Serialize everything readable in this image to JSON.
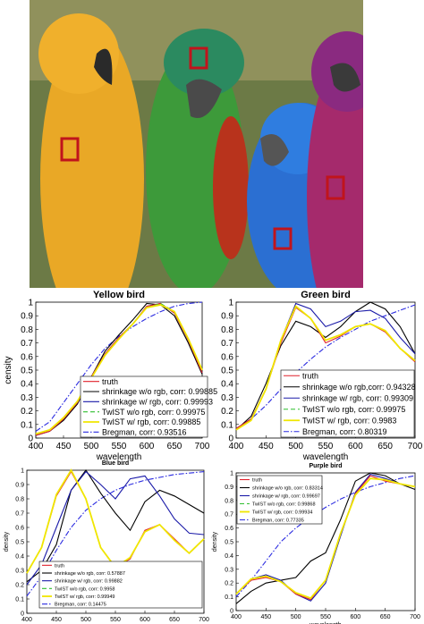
{
  "photo": {
    "description_icons": [
      "yellow-parrot",
      "green-macaw",
      "blue-parrot",
      "purple-parrot",
      "red-selection-square"
    ],
    "colors": {
      "marker": "#c0141c",
      "yellow_bird": "#e7a21c",
      "green_bird": "#3f9a3a",
      "blue_bird": "#2f6fd0",
      "purple_bird": "#a02870"
    }
  },
  "chart_data": [
    {
      "type": "line",
      "title": "Yellow bird",
      "xlabel": "wavelength",
      "ylabel": "censity",
      "xlim": [
        400,
        700
      ],
      "ylim": [
        0,
        1
      ],
      "xticks": [
        "400",
        "450",
        "500",
        "550",
        "600",
        "650",
        "700"
      ],
      "yticks": [
        "0",
        "0.1",
        "0.2",
        "0.3",
        "0.4",
        "0.5",
        "0.6",
        "0.7",
        "0.8",
        "0.9",
        "1"
      ],
      "legend_position": "lower-right",
      "x": [
        400,
        425,
        450,
        475,
        500,
        525,
        550,
        575,
        600,
        625,
        650,
        675,
        700
      ],
      "series": [
        {
          "name": "truth",
          "color": "#e0202a",
          "dash": "solid",
          "values": [
            0.02,
            0.05,
            0.14,
            0.26,
            0.45,
            0.62,
            0.74,
            0.84,
            0.97,
            0.99,
            0.92,
            0.72,
            0.48
          ]
        },
        {
          "name": "shrinkage w/o rgb, corr: 0.99885",
          "color": "#000000",
          "dash": "solid",
          "values": [
            0.02,
            0.05,
            0.13,
            0.25,
            0.45,
            0.64,
            0.76,
            0.87,
            0.99,
            0.98,
            0.9,
            0.7,
            0.47
          ]
        },
        {
          "name": "shrinkage w/ rgb, corr: 0.99993",
          "color": "#1a1aa8",
          "dash": "solid",
          "values": [
            0.02,
            0.05,
            0.14,
            0.26,
            0.45,
            0.62,
            0.74,
            0.84,
            0.97,
            0.99,
            0.92,
            0.72,
            0.48
          ]
        },
        {
          "name": "TwIST w/o rgb, corr: 0.99975",
          "color": "#2fbf2f",
          "dash": "dashed",
          "values": [
            0.03,
            0.06,
            0.15,
            0.27,
            0.44,
            0.61,
            0.73,
            0.84,
            0.96,
            0.99,
            0.93,
            0.73,
            0.5
          ]
        },
        {
          "name": "TwIST w/ rgb, corr: 0.99885",
          "color": "#f0e600",
          "dash": "solid",
          "values": [
            0.03,
            0.06,
            0.15,
            0.27,
            0.44,
            0.61,
            0.73,
            0.84,
            0.96,
            0.98,
            0.93,
            0.73,
            0.5
          ]
        },
        {
          "name": "Bregman, corr: 0.93516",
          "color": "#2a2ae0",
          "dash": "dashdot",
          "values": [
            0.05,
            0.12,
            0.26,
            0.4,
            0.54,
            0.66,
            0.75,
            0.82,
            0.88,
            0.93,
            0.97,
            0.99,
            1.0
          ]
        }
      ]
    },
    {
      "type": "line",
      "title": "Green bird",
      "xlabel": "wavelength",
      "ylabel": "",
      "xlim": [
        400,
        700
      ],
      "ylim": [
        0,
        1
      ],
      "xticks": [
        "400",
        "450",
        "500",
        "550",
        "600",
        "650",
        "700"
      ],
      "yticks": [
        "0",
        "0.1",
        "0.2",
        "0.3",
        "0.4",
        "0.5",
        "0.6",
        "0.7",
        "0.8",
        "0.9",
        "1"
      ],
      "legend_position": "lower-right",
      "x": [
        400,
        425,
        450,
        475,
        500,
        525,
        550,
        575,
        600,
        625,
        650,
        675,
        700
      ],
      "series": [
        {
          "name": "truth",
          "color": "#e0202a",
          "dash": "solid",
          "values": [
            0.07,
            0.14,
            0.36,
            0.7,
            0.96,
            0.88,
            0.7,
            0.75,
            0.82,
            0.84,
            0.78,
            0.66,
            0.56
          ]
        },
        {
          "name": "shrinkage w/o rgb,corr: 0.94328",
          "color": "#000000",
          "dash": "solid",
          "values": [
            0.06,
            0.16,
            0.4,
            0.68,
            0.86,
            0.82,
            0.74,
            0.82,
            0.93,
            1.0,
            0.95,
            0.82,
            0.62
          ]
        },
        {
          "name": "shrinkage w/ rgb, corr: 0.99309",
          "color": "#1a1aa8",
          "dash": "solid",
          "values": [
            0.07,
            0.14,
            0.36,
            0.72,
            0.99,
            0.95,
            0.82,
            0.86,
            0.93,
            0.94,
            0.88,
            0.74,
            0.62
          ]
        },
        {
          "name": "TwIST w/o rgb, corr: 0.99975",
          "color": "#2fbf2f",
          "dash": "dashed",
          "values": [
            0.06,
            0.13,
            0.36,
            0.72,
            0.97,
            0.88,
            0.72,
            0.76,
            0.82,
            0.84,
            0.79,
            0.66,
            0.57
          ]
        },
        {
          "name": "TwIST w/ rgb, corr: 0.9983",
          "color": "#f0e600",
          "dash": "solid",
          "values": [
            0.06,
            0.13,
            0.36,
            0.72,
            0.97,
            0.88,
            0.72,
            0.76,
            0.82,
            0.84,
            0.79,
            0.66,
            0.57
          ]
        },
        {
          "name": "Bregman, corr: 0.80319",
          "color": "#2a2ae0",
          "dash": "dashdot",
          "values": [
            0.07,
            0.14,
            0.24,
            0.36,
            0.48,
            0.58,
            0.67,
            0.74,
            0.8,
            0.86,
            0.9,
            0.94,
            0.98
          ]
        }
      ]
    },
    {
      "type": "line",
      "title": "Blue bird",
      "xlabel": "wavelength",
      "ylabel": "density",
      "xlim": [
        400,
        700
      ],
      "ylim": [
        0,
        1
      ],
      "xticks": [
        "400",
        "450",
        "500",
        "550",
        "600",
        "650",
        "700"
      ],
      "yticks": [
        "0",
        "0.1",
        "0.2",
        "0.3",
        "0.4",
        "0.5",
        "0.6",
        "0.7",
        "0.8",
        "0.9",
        "1"
      ],
      "legend_position": "lower-left",
      "x": [
        400,
        425,
        450,
        475,
        500,
        525,
        550,
        575,
        600,
        625,
        650,
        675,
        700
      ],
      "series": [
        {
          "name": "truth",
          "color": "#e0202a",
          "dash": "solid",
          "values": [
            0.28,
            0.46,
            0.82,
            0.99,
            0.8,
            0.46,
            0.32,
            0.38,
            0.58,
            0.62,
            0.52,
            0.42,
            0.52
          ]
        },
        {
          "name": "shrinkage w/o rgb, corr: 0.57887",
          "color": "#000000",
          "dash": "solid",
          "values": [
            0.22,
            0.3,
            0.48,
            0.86,
            1.0,
            0.84,
            0.7,
            0.58,
            0.78,
            0.86,
            0.82,
            0.76,
            0.7
          ]
        },
        {
          "name": "shrinkage w/ rgb, corr: 0.99882",
          "color": "#1a1aa8",
          "dash": "solid",
          "values": [
            0.2,
            0.34,
            0.6,
            0.86,
            0.99,
            0.9,
            0.8,
            0.94,
            0.96,
            0.82,
            0.66,
            0.56,
            0.55
          ]
        },
        {
          "name": "TwIST w/o rgb, corr: 0.9958",
          "color": "#2fbf2f",
          "dash": "dashed",
          "values": [
            0.28,
            0.46,
            0.83,
            1.0,
            0.8,
            0.46,
            0.32,
            0.39,
            0.57,
            0.62,
            0.51,
            0.42,
            0.52
          ]
        },
        {
          "name": "TwIST w/ rgb, corr: 0.99949",
          "color": "#f0e600",
          "dash": "solid",
          "values": [
            0.28,
            0.46,
            0.83,
            1.0,
            0.8,
            0.46,
            0.32,
            0.39,
            0.57,
            0.62,
            0.51,
            0.42,
            0.52
          ]
        },
        {
          "name": "Bregman, corr: 0.14475",
          "color": "#2a2ae0",
          "dash": "dashdot",
          "values": [
            0.12,
            0.26,
            0.44,
            0.6,
            0.72,
            0.8,
            0.86,
            0.9,
            0.93,
            0.95,
            0.97,
            0.98,
            0.99
          ]
        }
      ]
    },
    {
      "type": "line",
      "title": "Purple bird",
      "xlabel": "wavelength",
      "ylabel": "density",
      "xlim": [
        400,
        700
      ],
      "ylim": [
        0,
        1
      ],
      "xticks": [
        "400",
        "450",
        "500",
        "550",
        "600",
        "650",
        "700"
      ],
      "yticks": [
        "0",
        "0.1",
        "0.2",
        "0.3",
        "0.4",
        "0.5",
        "0.6",
        "0.7",
        "0.8",
        "0.9",
        "1"
      ],
      "legend_position": "upper-left",
      "x": [
        400,
        425,
        450,
        475,
        500,
        525,
        550,
        575,
        600,
        625,
        650,
        675,
        700
      ],
      "series": [
        {
          "name": "truth",
          "color": "#e0202a",
          "dash": "solid",
          "values": [
            0.12,
            0.22,
            0.24,
            0.21,
            0.12,
            0.08,
            0.22,
            0.56,
            0.85,
            0.98,
            0.94,
            0.92,
            0.9
          ]
        },
        {
          "name": "shrinkage w/o rgb, corr: 0.83314",
          "color": "#000000",
          "dash": "solid",
          "values": [
            0.05,
            0.14,
            0.2,
            0.22,
            0.24,
            0.36,
            0.42,
            0.66,
            0.94,
            1.0,
            0.98,
            0.92,
            0.88
          ]
        },
        {
          "name": "shrinkage w/ rgb, corr: 0.99697",
          "color": "#1a1aa8",
          "dash": "solid",
          "values": [
            0.12,
            0.23,
            0.26,
            0.22,
            0.12,
            0.07,
            0.2,
            0.54,
            0.86,
            0.99,
            0.96,
            0.92,
            0.9
          ]
        },
        {
          "name": "TwIST w/o rgb, corr: 0.99868",
          "color": "#2fbf2f",
          "dash": "dashed",
          "values": [
            0.12,
            0.23,
            0.25,
            0.21,
            0.13,
            0.09,
            0.22,
            0.56,
            0.84,
            0.96,
            0.95,
            0.92,
            0.9
          ]
        },
        {
          "name": "TwIST w/ rgb, corr: 0.99934",
          "color": "#f0e600",
          "dash": "solid",
          "values": [
            0.12,
            0.23,
            0.25,
            0.21,
            0.13,
            0.09,
            0.22,
            0.56,
            0.84,
            0.96,
            0.95,
            0.92,
            0.9
          ]
        },
        {
          "name": "Bregman, corr: 0.77335",
          "color": "#2a2ae0",
          "dash": "dashdot",
          "values": [
            0.1,
            0.22,
            0.36,
            0.5,
            0.6,
            0.68,
            0.75,
            0.81,
            0.86,
            0.9,
            0.93,
            0.96,
            0.98
          ]
        }
      ]
    }
  ]
}
